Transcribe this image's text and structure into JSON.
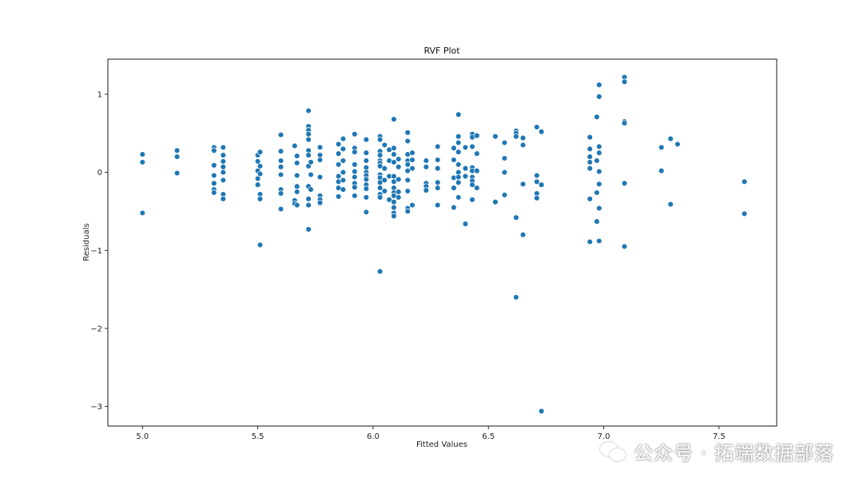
{
  "chart_data": {
    "type": "scatter",
    "title": "RVF Plot",
    "xlabel": "Fitted Values",
    "ylabel": "Residuals",
    "xlim": [
      4.85,
      7.75
    ],
    "ylim": [
      -3.25,
      1.45
    ],
    "xticks": [
      5.0,
      5.5,
      6.0,
      6.5,
      7.0,
      7.5
    ],
    "xtick_labels": [
      "5.0",
      "5.5",
      "6.0",
      "6.5",
      "7.0",
      "7.5"
    ],
    "yticks": [
      -3,
      -2,
      -1,
      0,
      1
    ],
    "ytick_labels": [
      "−3",
      "−2",
      "−1",
      "0",
      "1"
    ],
    "grid": false,
    "point_color": "#1f77b4",
    "points": [
      [
        5.0,
        0.23
      ],
      [
        5.0,
        0.13
      ],
      [
        5.0,
        -0.52
      ],
      [
        5.15,
        0.28
      ],
      [
        5.15,
        0.2
      ],
      [
        5.15,
        -0.01
      ],
      [
        5.31,
        0.32
      ],
      [
        5.31,
        0.28
      ],
      [
        5.31,
        0.09
      ],
      [
        5.31,
        -0.04
      ],
      [
        5.31,
        -0.14
      ],
      [
        5.31,
        -0.22
      ],
      [
        5.31,
        -0.26
      ],
      [
        5.35,
        0.32
      ],
      [
        5.35,
        0.22
      ],
      [
        5.35,
        0.14
      ],
      [
        5.35,
        0.07
      ],
      [
        5.35,
        0.0
      ],
      [
        5.35,
        -0.1
      ],
      [
        5.35,
        -0.28
      ],
      [
        5.35,
        -0.34
      ],
      [
        5.5,
        0.22
      ],
      [
        5.5,
        0.14
      ],
      [
        5.5,
        0.02
      ],
      [
        5.5,
        -0.08
      ],
      [
        5.5,
        -0.16
      ],
      [
        5.51,
        0.26
      ],
      [
        5.51,
        0.08
      ],
      [
        5.51,
        -0.02
      ],
      [
        5.51,
        -0.28
      ],
      [
        5.51,
        -0.34
      ],
      [
        5.51,
        -0.93
      ],
      [
        5.6,
        0.48
      ],
      [
        5.6,
        0.27
      ],
      [
        5.6,
        0.15
      ],
      [
        5.6,
        0.07
      ],
      [
        5.6,
        -0.03
      ],
      [
        5.6,
        -0.22
      ],
      [
        5.6,
        -0.27
      ],
      [
        5.6,
        -0.47
      ],
      [
        5.66,
        0.34
      ],
      [
        5.66,
        -0.36
      ],
      [
        5.66,
        -0.4
      ],
      [
        5.67,
        0.21
      ],
      [
        5.67,
        0.12
      ],
      [
        5.67,
        -0.04
      ],
      [
        5.67,
        -0.18
      ],
      [
        5.67,
        -0.25
      ],
      [
        5.67,
        -0.42
      ],
      [
        5.72,
        0.79
      ],
      [
        5.72,
        0.59
      ],
      [
        5.72,
        0.54
      ],
      [
        5.72,
        0.49
      ],
      [
        5.72,
        0.42
      ],
      [
        5.72,
        0.28
      ],
      [
        5.72,
        0.22
      ],
      [
        5.72,
        0.08
      ],
      [
        5.72,
        -0.18
      ],
      [
        5.72,
        -0.34
      ],
      [
        5.72,
        -0.42
      ],
      [
        5.72,
        -0.73
      ],
      [
        5.73,
        0.13
      ],
      [
        5.73,
        -0.03
      ],
      [
        5.73,
        -0.22
      ],
      [
        5.77,
        0.32
      ],
      [
        5.77,
        0.22
      ],
      [
        5.77,
        0.16
      ],
      [
        5.77,
        -0.06
      ],
      [
        5.77,
        -0.3
      ],
      [
        5.77,
        -0.35
      ],
      [
        5.77,
        -0.39
      ],
      [
        5.85,
        0.36
      ],
      [
        5.85,
        0.24
      ],
      [
        5.85,
        0.1
      ],
      [
        5.85,
        -0.05
      ],
      [
        5.85,
        -0.12
      ],
      [
        5.85,
        -0.2
      ],
      [
        5.85,
        -0.31
      ],
      [
        5.87,
        0.43
      ],
      [
        5.87,
        0.3
      ],
      [
        5.87,
        0.15
      ],
      [
        5.87,
        0.0
      ],
      [
        5.87,
        -0.1
      ],
      [
        5.87,
        -0.22
      ],
      [
        5.92,
        0.49
      ],
      [
        5.92,
        0.31
      ],
      [
        5.92,
        0.26
      ],
      [
        5.92,
        0.1
      ],
      [
        5.92,
        0.01
      ],
      [
        5.92,
        -0.06
      ],
      [
        5.92,
        -0.14
      ],
      [
        5.92,
        -0.19
      ],
      [
        5.92,
        -0.3
      ],
      [
        5.97,
        0.42
      ],
      [
        5.97,
        0.25
      ],
      [
        5.97,
        0.15
      ],
      [
        5.97,
        0.06
      ],
      [
        5.97,
        0.0
      ],
      [
        5.97,
        -0.04
      ],
      [
        5.97,
        -0.09
      ],
      [
        5.97,
        -0.16
      ],
      [
        5.97,
        -0.21
      ],
      [
        5.97,
        -0.32
      ],
      [
        5.97,
        -0.51
      ],
      [
        6.03,
        0.46
      ],
      [
        6.03,
        0.42
      ],
      [
        6.03,
        0.27
      ],
      [
        6.03,
        0.22
      ],
      [
        6.03,
        0.15
      ],
      [
        6.03,
        0.12
      ],
      [
        6.03,
        0.08
      ],
      [
        6.03,
        -0.03
      ],
      [
        6.03,
        -0.07
      ],
      [
        6.03,
        -0.13
      ],
      [
        6.03,
        -0.2
      ],
      [
        6.03,
        -0.28
      ],
      [
        6.03,
        -0.32
      ],
      [
        6.03,
        -1.27
      ],
      [
        6.05,
        0.35
      ],
      [
        6.05,
        0.05
      ],
      [
        6.05,
        -0.1
      ],
      [
        6.05,
        -0.24
      ],
      [
        6.07,
        0.29
      ],
      [
        6.07,
        0.15
      ],
      [
        6.07,
        -0.05
      ],
      [
        6.07,
        -0.35
      ],
      [
        6.09,
        0.68
      ],
      [
        6.09,
        0.31
      ],
      [
        6.09,
        0.23
      ],
      [
        6.09,
        0.13
      ],
      [
        6.09,
        -0.05
      ],
      [
        6.09,
        -0.12
      ],
      [
        6.09,
        -0.2
      ],
      [
        6.09,
        -0.26
      ],
      [
        6.09,
        -0.3
      ],
      [
        6.09,
        -0.38
      ],
      [
        6.09,
        -0.45
      ],
      [
        6.09,
        -0.52
      ],
      [
        6.09,
        -0.56
      ],
      [
        6.11,
        0.17
      ],
      [
        6.11,
        0.07
      ],
      [
        6.11,
        -0.09
      ],
      [
        6.11,
        -0.25
      ],
      [
        6.11,
        -0.32
      ],
      [
        6.15,
        0.51
      ],
      [
        6.15,
        0.4
      ],
      [
        6.15,
        0.23
      ],
      [
        6.15,
        0.15
      ],
      [
        6.15,
        0.1
      ],
      [
        6.15,
        0.02
      ],
      [
        6.15,
        -0.1
      ],
      [
        6.15,
        -0.24
      ],
      [
        6.15,
        -0.46
      ],
      [
        6.15,
        -0.5
      ],
      [
        6.17,
        0.25
      ],
      [
        6.17,
        0.16
      ],
      [
        6.17,
        0.05
      ],
      [
        6.17,
        -0.42
      ],
      [
        6.23,
        0.15
      ],
      [
        6.23,
        0.07
      ],
      [
        6.23,
        -0.14
      ],
      [
        6.23,
        -0.18
      ],
      [
        6.23,
        -0.23
      ],
      [
        6.28,
        0.33
      ],
      [
        6.28,
        0.16
      ],
      [
        6.28,
        0.05
      ],
      [
        6.28,
        -0.13
      ],
      [
        6.28,
        -0.2
      ],
      [
        6.28,
        -0.42
      ],
      [
        6.35,
        0.31
      ],
      [
        6.35,
        0.16
      ],
      [
        6.35,
        -0.07
      ],
      [
        6.35,
        -0.2
      ],
      [
        6.35,
        -0.45
      ],
      [
        6.37,
        0.74
      ],
      [
        6.37,
        0.46
      ],
      [
        6.37,
        0.38
      ],
      [
        6.37,
        0.26
      ],
      [
        6.37,
        0.1
      ],
      [
        6.37,
        0.0
      ],
      [
        6.37,
        -0.06
      ],
      [
        6.37,
        -0.13
      ],
      [
        6.37,
        -0.32
      ],
      [
        6.4,
        0.32
      ],
      [
        6.4,
        0.05
      ],
      [
        6.4,
        -0.05
      ],
      [
        6.4,
        -0.66
      ],
      [
        6.43,
        0.49
      ],
      [
        6.43,
        0.45
      ],
      [
        6.43,
        0.33
      ],
      [
        6.43,
        0.06
      ],
      [
        6.43,
        0.02
      ],
      [
        6.43,
        -0.06
      ],
      [
        6.43,
        -0.11
      ],
      [
        6.43,
        -0.16
      ],
      [
        6.43,
        -0.35
      ],
      [
        6.45,
        0.47
      ],
      [
        6.45,
        0.24
      ],
      [
        6.45,
        0.02
      ],
      [
        6.45,
        -0.2
      ],
      [
        6.53,
        0.46
      ],
      [
        6.53,
        -0.38
      ],
      [
        6.57,
        0.38
      ],
      [
        6.57,
        0.18
      ],
      [
        6.57,
        0.0
      ],
      [
        6.57,
        -0.29
      ],
      [
        6.62,
        0.53
      ],
      [
        6.62,
        0.5
      ],
      [
        6.62,
        0.46
      ],
      [
        6.62,
        -0.58
      ],
      [
        6.62,
        -1.6
      ],
      [
        6.65,
        0.44
      ],
      [
        6.65,
        0.35
      ],
      [
        6.65,
        -0.15
      ],
      [
        6.65,
        -0.8
      ],
      [
        6.71,
        0.58
      ],
      [
        6.71,
        -0.04
      ],
      [
        6.71,
        -0.12
      ],
      [
        6.71,
        -0.27
      ],
      [
        6.71,
        -0.33
      ],
      [
        6.73,
        0.52
      ],
      [
        6.73,
        -0.16
      ],
      [
        6.73,
        -3.06
      ],
      [
        6.94,
        0.45
      ],
      [
        6.94,
        0.3
      ],
      [
        6.94,
        0.2
      ],
      [
        6.94,
        0.13
      ],
      [
        6.94,
        0.05
      ],
      [
        6.94,
        -0.34
      ],
      [
        6.94,
        -0.89
      ],
      [
        6.97,
        0.71
      ],
      [
        6.97,
        0.15
      ],
      [
        6.97,
        -0.26
      ],
      [
        6.97,
        -0.63
      ],
      [
        6.98,
        1.12
      ],
      [
        6.98,
        0.97
      ],
      [
        6.98,
        0.33
      ],
      [
        6.98,
        0.25
      ],
      [
        6.98,
        0.01
      ],
      [
        6.98,
        -0.15
      ],
      [
        6.98,
        -0.46
      ],
      [
        6.98,
        -0.88
      ],
      [
        7.09,
        1.22
      ],
      [
        7.09,
        1.16
      ],
      [
        7.09,
        0.65
      ],
      [
        7.09,
        0.63
      ],
      [
        7.09,
        -0.14
      ],
      [
        7.09,
        -0.95
      ],
      [
        7.25,
        0.32
      ],
      [
        7.25,
        0.02
      ],
      [
        7.29,
        0.43
      ],
      [
        7.29,
        -0.41
      ],
      [
        7.32,
        0.36
      ],
      [
        7.61,
        -0.12
      ],
      [
        7.61,
        -0.53
      ]
    ]
  },
  "watermark": {
    "text": "公众号 · 拓端数据部落",
    "icon": "wechat-icon"
  }
}
